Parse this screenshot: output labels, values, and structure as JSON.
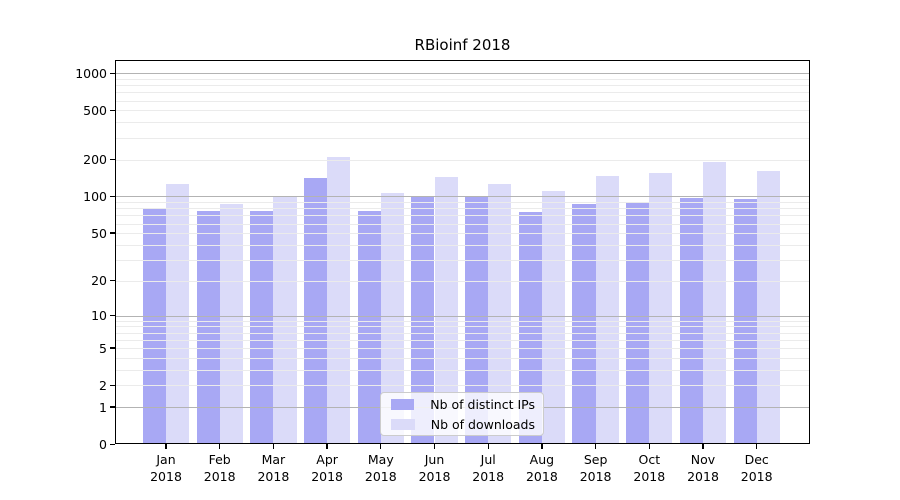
{
  "figure": {
    "title": "RBioinf 2018"
  },
  "legend": {
    "position": "lower center",
    "items": [
      {
        "label": "Nb of distinct IPs",
        "color": "#a8a8f4"
      },
      {
        "label": "Nb of downloads",
        "color": "#dbdbf9"
      }
    ]
  },
  "chart_data": {
    "type": "bar",
    "title": "RBioinf 2018",
    "categories": [
      {
        "month": "Jan",
        "year": "2018"
      },
      {
        "month": "Feb",
        "year": "2018"
      },
      {
        "month": "Mar",
        "year": "2018"
      },
      {
        "month": "Apr",
        "year": "2018"
      },
      {
        "month": "May",
        "year": "2018"
      },
      {
        "month": "Jun",
        "year": "2018"
      },
      {
        "month": "Jul",
        "year": "2018"
      },
      {
        "month": "Aug",
        "year": "2018"
      },
      {
        "month": "Sep",
        "year": "2018"
      },
      {
        "month": "Oct",
        "year": "2018"
      },
      {
        "month": "Nov",
        "year": "2018"
      },
      {
        "month": "Dec",
        "year": "2018"
      }
    ],
    "series": [
      {
        "name": "Nb of distinct IPs",
        "color": "#a8a8f4",
        "values": [
          80,
          75,
          76,
          141,
          76,
          98,
          98,
          74,
          87,
          89,
          97,
          94
        ]
      },
      {
        "name": "Nb of downloads",
        "color": "#dbdbf9",
        "values": [
          125,
          86,
          98,
          210,
          107,
          143,
          126,
          110,
          146,
          155,
          190,
          161
        ]
      }
    ],
    "xlabel": "",
    "ylabel": "",
    "y_scale": "log10(1+x)",
    "y_ticks": [
      0,
      1,
      2,
      5,
      10,
      20,
      50,
      100,
      200,
      500,
      1000
    ],
    "y_major_gridlines": [
      1,
      10,
      100,
      1000
    ],
    "y_minor_gridlines": [
      2,
      3,
      4,
      5,
      6,
      7,
      8,
      9,
      20,
      30,
      40,
      50,
      60,
      70,
      80,
      90,
      200,
      300,
      400,
      500,
      600,
      700,
      800,
      900
    ],
    "ylim_top": 1000,
    "grid": true,
    "legend_position": "lower center"
  }
}
